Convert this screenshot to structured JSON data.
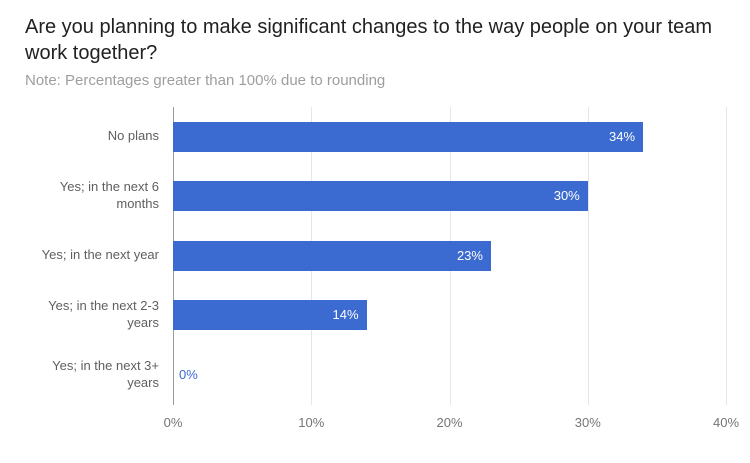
{
  "header": {
    "title": "Are you planning to make significant changes to the way people on your team work together?",
    "note": "Note: Percentages greater than 100% due to rounding"
  },
  "colors": {
    "bar": "#3b6bd1",
    "bar_value_inside": "#ffffff",
    "bar_value_zero": "#3b6bd1",
    "gridline": "#e6e6e6",
    "zero_line": "#9a9a9a",
    "axis_tick_text": "#757575",
    "category_text": "#5f5f5f"
  },
  "chart_data": {
    "type": "bar",
    "orientation": "horizontal",
    "title": "Are you planning to make significant changes to the way people on your team work together?",
    "categories": [
      "No plans",
      "Yes; in the next 6 months",
      "Yes; in the next year",
      "Yes; in the next 2-3 years",
      "Yes; in the next 3+ years"
    ],
    "values": [
      34,
      30,
      23,
      14,
      0
    ],
    "value_labels": [
      "34%",
      "30%",
      "23%",
      "14%",
      "0%"
    ],
    "xlabel": "",
    "ylabel": "",
    "xlim": [
      0,
      40
    ],
    "x_ticks": [
      0,
      10,
      20,
      30,
      40
    ],
    "x_tick_labels": [
      "0%",
      "10%",
      "20%",
      "30%",
      "40%"
    ],
    "grid": true,
    "legend_position": "none"
  }
}
